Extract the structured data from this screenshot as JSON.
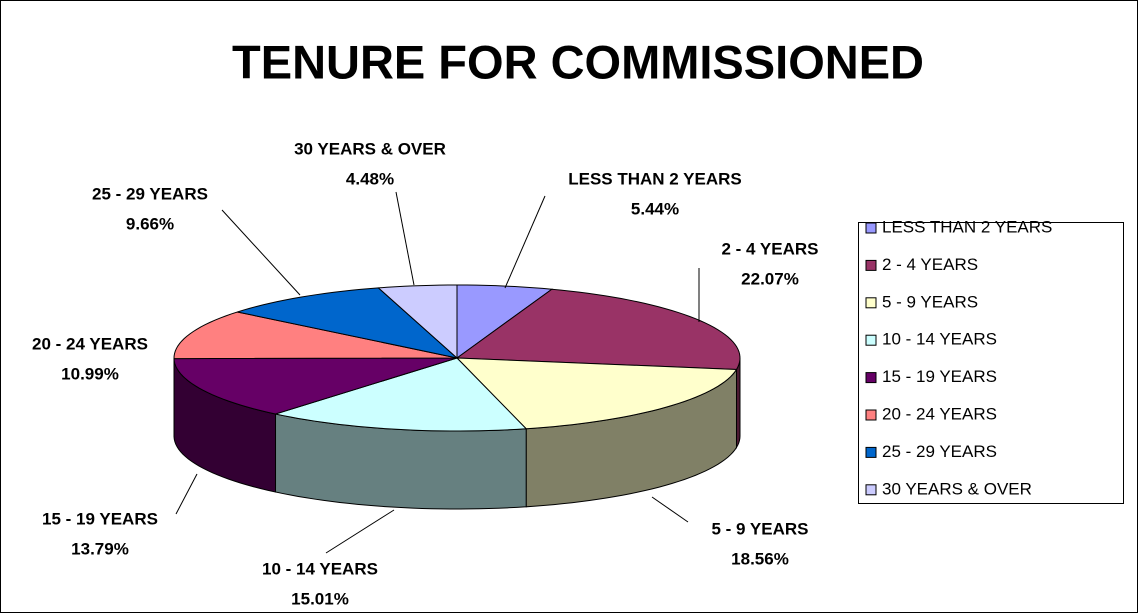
{
  "chart_data": {
    "type": "pie",
    "title": "TENURE FOR COMMISSIONED",
    "categories": [
      "LESS THAN 2 YEARS",
      "2 - 4 YEARS",
      "5 - 9 YEARS",
      "10 - 14 YEARS",
      "15 - 19 YEARS",
      "20 - 24 YEARS",
      "25 - 29 YEARS",
      "30 YEARS & OVER"
    ],
    "values": [
      5.44,
      22.07,
      18.56,
      15.01,
      13.79,
      10.99,
      9.66,
      4.48
    ],
    "value_labels": [
      "5.44%",
      "22.07%",
      "18.56%",
      "15.01%",
      "13.79%",
      "10.99%",
      "9.66%",
      "4.48%"
    ],
    "colors": [
      "#9999ff",
      "#993366",
      "#ffffcc",
      "#ccffff",
      "#660066",
      "#ff8080",
      "#0066cc",
      "#ccccff"
    ],
    "legend": "right"
  }
}
